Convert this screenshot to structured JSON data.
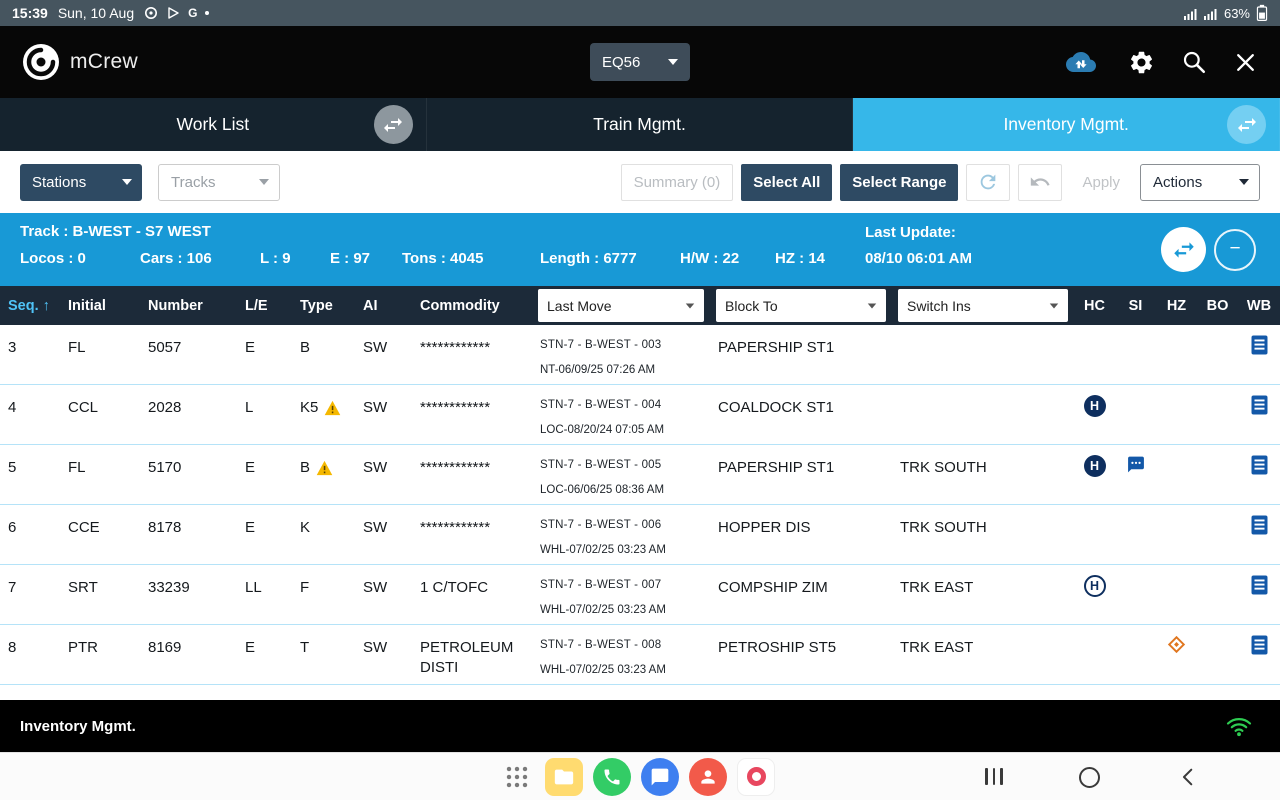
{
  "status_bar": {
    "time": "15:39",
    "date": "Sun, 10 Aug",
    "g_icon": "G",
    "battery_percent": "63%"
  },
  "app_header": {
    "app_name": "mCrew",
    "equipment_select": "EQ56"
  },
  "tabs": [
    {
      "label": "Work List",
      "active": false
    },
    {
      "label": "Train Mgmt.",
      "active": false
    },
    {
      "label": "Inventory Mgmt.",
      "active": true
    }
  ],
  "toolbar": {
    "stations_select": "Stations",
    "tracks_select": "Tracks",
    "summary_button": "Summary (0)",
    "select_all_button": "Select All",
    "select_range_button": "Select Range",
    "apply_button": "Apply",
    "actions_select": "Actions"
  },
  "track_info": {
    "track": "Track : B-WEST - S7 WEST",
    "locos": "Locos : 0",
    "cars": "Cars : 106",
    "loads": "L : 9",
    "empties": "E : 97",
    "tons": "Tons : 4045",
    "length": "Length : 6777",
    "hw": "H/W : 22",
    "hz": "HZ : 14",
    "last_update_label": "Last Update:",
    "last_update_value": "08/10 06:01 AM"
  },
  "table": {
    "headers": {
      "seq": "Seq.",
      "initial": "Initial",
      "number": "Number",
      "le": "L/E",
      "type": "Type",
      "ai": "AI",
      "commodity": "Commodity",
      "last_move": "Last Move",
      "block_to": "Block To",
      "switch_ins": "Switch Ins",
      "hc": "HC",
      "si": "SI",
      "hz": "HZ",
      "bo": "BO",
      "wb": "WB"
    },
    "rows": [
      {
        "seq": "3",
        "initial": "FL",
        "number": "5057",
        "le": "E",
        "type": "B",
        "type_warning": false,
        "ai": "SW",
        "commodity": "************",
        "last_move_line1": "STN-7 - B-WEST - 003",
        "last_move_line2": "NT-06/09/25 07:26 AM",
        "block_to": "PAPERSHIP ST1",
        "switch_ins": "",
        "hc": "",
        "si": "",
        "hz": "",
        "bo": "",
        "wb": "doc"
      },
      {
        "seq": "4",
        "initial": "CCL",
        "number": "2028",
        "le": "L",
        "type": "K5",
        "type_warning": true,
        "ai": "SW",
        "commodity": "************",
        "last_move_line1": "STN-7 - B-WEST - 004",
        "last_move_line2": "LOC-08/20/24 07:05 AM",
        "block_to": "COALDOCK ST1",
        "switch_ins": "",
        "hc": "filled-h",
        "si": "",
        "hz": "",
        "bo": "",
        "wb": "doc"
      },
      {
        "seq": "5",
        "initial": "FL",
        "number": "5170",
        "le": "E",
        "type": "B",
        "type_warning": true,
        "ai": "SW",
        "commodity": "************",
        "last_move_line1": "STN-7 - B-WEST - 005",
        "last_move_line2": "LOC-06/06/25 08:36 AM",
        "block_to": "PAPERSHIP ST1",
        "switch_ins": "TRK SOUTH",
        "hc": "filled-h",
        "si": "comment-bubble",
        "hz": "",
        "bo": "",
        "wb": "doc"
      },
      {
        "seq": "6",
        "initial": "CCE",
        "number": "8178",
        "le": "E",
        "type": "K",
        "type_warning": false,
        "ai": "SW",
        "commodity": "************",
        "last_move_line1": "STN-7 - B-WEST - 006",
        "last_move_line2": "WHL-07/02/25 03:23 AM",
        "block_to": "HOPPER DIS",
        "switch_ins": "TRK SOUTH",
        "hc": "",
        "si": "",
        "hz": "",
        "bo": "",
        "wb": "doc"
      },
      {
        "seq": "7",
        "initial": "SRT",
        "number": "33239",
        "le": "LL",
        "type": "F",
        "type_warning": false,
        "ai": "SW",
        "commodity": "1 C/TOFC",
        "last_move_line1": "STN-7 - B-WEST - 007",
        "last_move_line2": "WHL-07/02/25 03:23 AM",
        "block_to": "COMPSHIP ZIM",
        "switch_ins": "TRK EAST",
        "hc": "outline-h",
        "si": "",
        "hz": "",
        "bo": "",
        "wb": "doc"
      },
      {
        "seq": "8",
        "initial": "PTR",
        "number": "8169",
        "le": "E",
        "type": "T",
        "type_warning": false,
        "ai": "SW",
        "commodity": "PETROLEUM DISTI",
        "last_move_line1": "STN-7 - B-WEST - 008",
        "last_move_line2": "WHL-07/02/25 03:23 AM",
        "block_to": "PETROSHIP ST5",
        "switch_ins": "TRK EAST",
        "hc": "",
        "si": "",
        "hz": "diamond",
        "bo": "",
        "wb": "doc"
      }
    ]
  },
  "footer": {
    "label": "Inventory Mgmt."
  },
  "icons": {
    "sort_asc": "↑",
    "h_badge": "H",
    "minus": "−"
  },
  "colors": {
    "accent_blue": "#1899d6",
    "active_tab_blue": "#36b7e9",
    "button_navy": "#2e4a63",
    "table_header_navy": "#1c2a39",
    "row_divider_blue": "#b5e3f8",
    "doc_icon_blue": "#1358a8",
    "warning_yellow": "#f5b800",
    "hazmat_orange": "#e0761f",
    "wifi_green": "#2ecc52"
  }
}
